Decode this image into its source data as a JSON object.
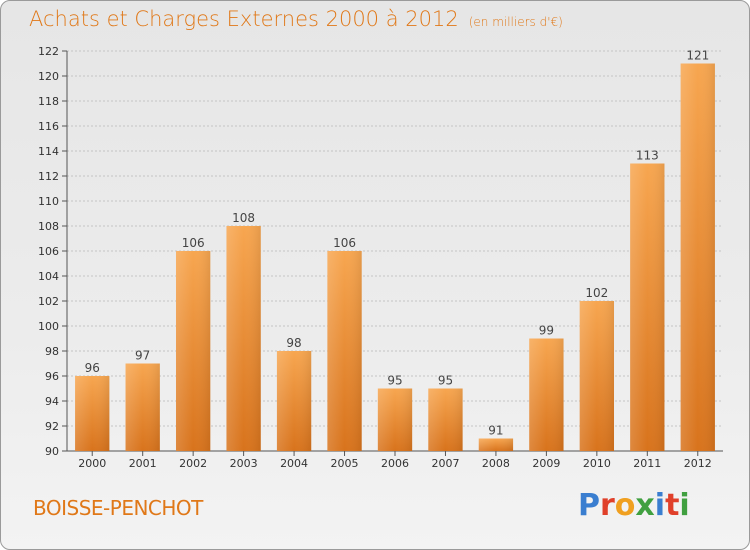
{
  "title": "Achats et Charges Externes 2000 à 2012",
  "subtitle": "(en milliers d'€)",
  "city": "BOISSE-PENCHOT",
  "logo": {
    "letters": [
      "P",
      "r",
      "o",
      "x",
      "i",
      "t",
      "i"
    ],
    "colors": [
      "#3a7ed0",
      "#e0402a",
      "#f0a020",
      "#40a040",
      "#3a7ed0",
      "#e0402a",
      "#40a040"
    ]
  },
  "colors": {
    "bar_light": "#f6a24e",
    "bar_dark": "#d8731c",
    "text": "#e07818"
  },
  "chart_data": {
    "type": "bar",
    "categories": [
      "2000",
      "2001",
      "2002",
      "2003",
      "2004",
      "2005",
      "2006",
      "2007",
      "2008",
      "2009",
      "2010",
      "2011",
      "2012"
    ],
    "values": [
      96,
      97,
      106,
      108,
      98,
      106,
      95,
      95,
      91,
      99,
      102,
      113,
      121
    ],
    "ylim": [
      90,
      122
    ],
    "yticks": [
      90,
      92,
      94,
      96,
      98,
      100,
      102,
      104,
      106,
      108,
      110,
      112,
      114,
      116,
      118,
      120,
      122
    ],
    "grid": true
  }
}
